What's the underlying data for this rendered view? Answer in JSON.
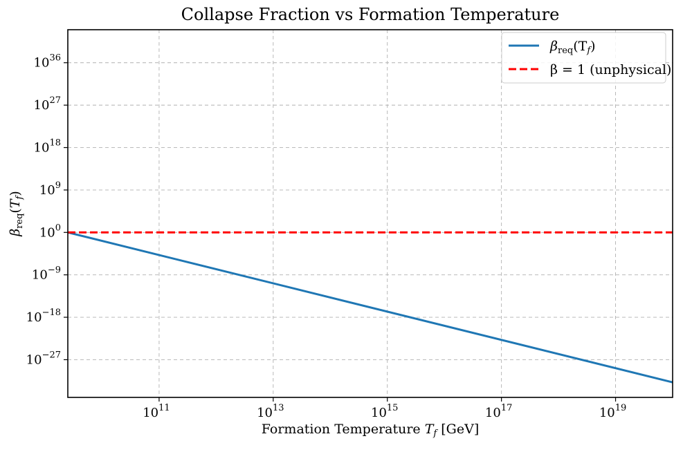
{
  "chart_data": {
    "type": "line",
    "title": "Collapse Fraction vs Formation Temperature",
    "xlabel": "Formation Temperature T_f [GeV]",
    "ylabel": "β_req(T_f)",
    "xscale": "log",
    "yscale": "log",
    "xlim_log10": [
      9.4,
      20.0
    ],
    "ylim_log10": [
      -35.0,
      43.0
    ],
    "x_ticks": [
      {
        "base": "10",
        "exp": "11",
        "value_log10": 11
      },
      {
        "base": "10",
        "exp": "13",
        "value_log10": 13
      },
      {
        "base": "10",
        "exp": "15",
        "value_log10": 15
      },
      {
        "base": "10",
        "exp": "17",
        "value_log10": 17
      },
      {
        "base": "10",
        "exp": "19",
        "value_log10": 19
      }
    ],
    "y_ticks": [
      {
        "base": "10",
        "exp": "36",
        "value_log10": 36
      },
      {
        "base": "10",
        "exp": "27",
        "value_log10": 27
      },
      {
        "base": "10",
        "exp": "18",
        "value_log10": 18
      },
      {
        "base": "10",
        "exp": "9",
        "value_log10": 9
      },
      {
        "base": "10",
        "exp": "0",
        "value_log10": 0
      },
      {
        "base": "10",
        "exp": "−9",
        "value_log10": -9
      },
      {
        "base": "10",
        "exp": "−18",
        "value_log10": -18
      },
      {
        "base": "10",
        "exp": "−27",
        "value_log10": -27
      }
    ],
    "grid": true,
    "legend_position": "top-right",
    "series": [
      {
        "name": "β_req(T_f)",
        "label_main": "β",
        "label_sub": "req",
        "label_rest": "(T",
        "label_rest_sub": "f",
        "label_close": ")",
        "color": "#1f77b4",
        "style": "solid",
        "x_log10": [
          9.4,
          20.0
        ],
        "y_log10": [
          0.0,
          -31.8
        ]
      },
      {
        "name": "β = 1 (unphysical)",
        "label_main": "β = 1 (unphysical)",
        "color": "#ff0000",
        "style": "dashed",
        "x_log10": [
          9.4,
          20.0
        ],
        "y_log10": [
          0.0,
          0.0
        ]
      }
    ]
  }
}
